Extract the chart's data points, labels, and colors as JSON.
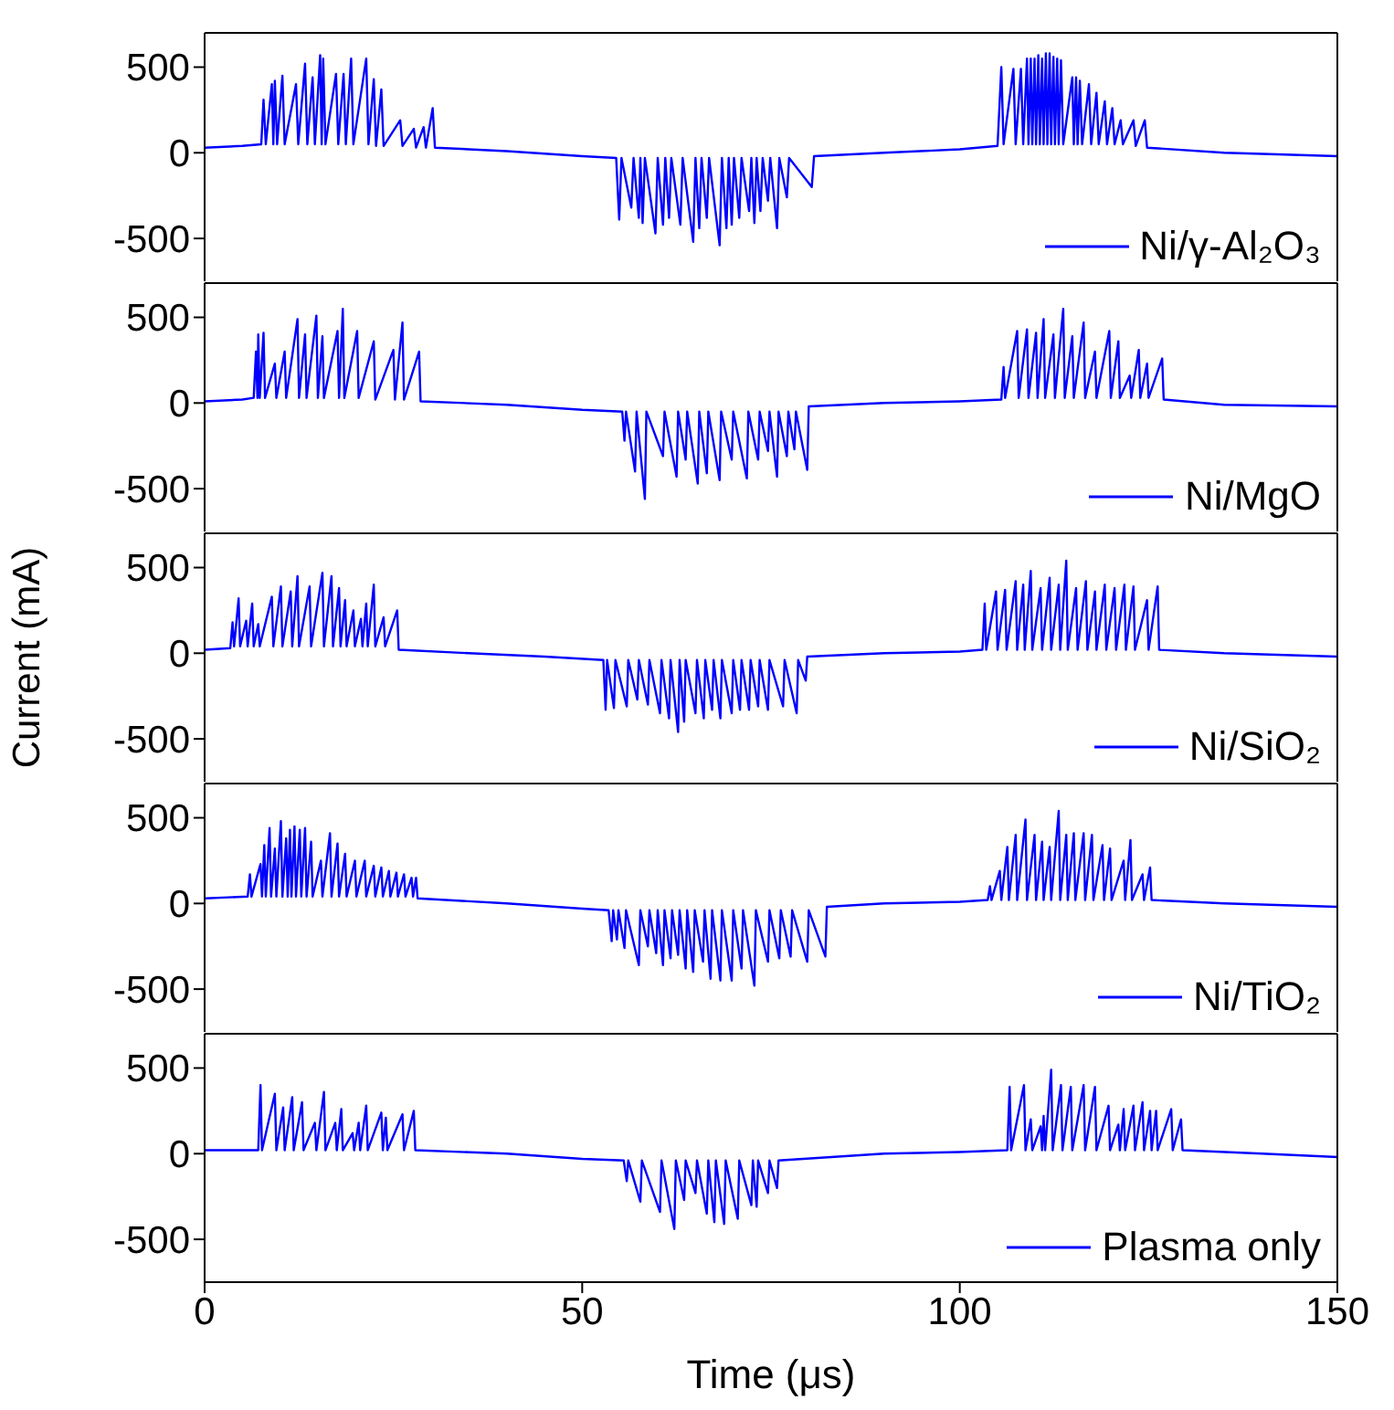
{
  "chart_data": [
    {
      "type": "line",
      "xlim": [
        0,
        150
      ],
      "ylim": [
        -750,
        700
      ],
      "yticks": [
        -500,
        0,
        500
      ],
      "tick_labels": "y",
      "legend": "bottom right",
      "line_style": "solid",
      "series": [
        {
          "name": "Ni/γ-Al₂O₃",
          "color": "#0000ff",
          "x": [
            0,
            5,
            7.5,
            7.8,
            8.1,
            8.9,
            9.1,
            9.3,
            9.6,
            10.3,
            10.6,
            12.1,
            12.4,
            13.3,
            13.6,
            14.3,
            14.6,
            15.3,
            15.5,
            15.7,
            16.0,
            17.4,
            17.7,
            18.4,
            18.7,
            19.4,
            19.7,
            21.4,
            21.7,
            22.4,
            22.7,
            23.4,
            23.7,
            25.9,
            26.2,
            27.7,
            28.0,
            29.0,
            29.3,
            30.2,
            30.5,
            40,
            50,
            54.5,
            54.9,
            55.2,
            56.5,
            56.8,
            57.5,
            57.7,
            58.0,
            58.3,
            59.7,
            60.0,
            60.7,
            61.0,
            61.5,
            61.8,
            63.0,
            63.3,
            64.7,
            65.0,
            65.5,
            65.8,
            66.5,
            66.8,
            68.2,
            68.5,
            69.1,
            69.4,
            69.8,
            70.1,
            70.8,
            71.1,
            72.1,
            72.4,
            72.8,
            73.1,
            73.6,
            73.9,
            74.6,
            74.9,
            75.8,
            76.1,
            77.1,
            77.4,
            80.4,
            80.7,
            90,
            100,
            105,
            105.5,
            105.8,
            107.1,
            107.4,
            108.1,
            108.4,
            108.9,
            109.1,
            109.4,
            109.6,
            109.9,
            110.1,
            110.4,
            110.6,
            110.9,
            111.1,
            111.4,
            111.6,
            111.9,
            112.1,
            112.4,
            112.6,
            112.9,
            113.1,
            113.4,
            113.7,
            114.9,
            115.1,
            115.4,
            115.6,
            115.9,
            116.2,
            117.1,
            117.4,
            118.1,
            118.4,
            119.2,
            119.5,
            120.2,
            120.5,
            121.3,
            121.6,
            123.0,
            123.3,
            124.5,
            124.8,
            135,
            150
          ],
          "values": [
            30,
            40,
            50,
            310,
            50,
            400,
            50,
            420,
            50,
            450,
            50,
            400,
            50,
            520,
            50,
            440,
            50,
            570,
            50,
            550,
            50,
            460,
            50,
            460,
            50,
            550,
            50,
            550,
            50,
            430,
            40,
            370,
            40,
            190,
            40,
            140,
            30,
            150,
            30,
            260,
            30,
            10,
            -20,
            -30,
            -390,
            -30,
            -320,
            -30,
            -380,
            -30,
            -410,
            -30,
            -470,
            -30,
            -420,
            -30,
            -380,
            -30,
            -420,
            -30,
            -520,
            -30,
            -440,
            -30,
            -380,
            -30,
            -540,
            -30,
            -440,
            -30,
            -420,
            -30,
            -380,
            -30,
            -340,
            -30,
            -410,
            -30,
            -340,
            -30,
            -280,
            -30,
            -440,
            -30,
            -260,
            -30,
            -200,
            -20,
            0,
            20,
            40,
            500,
            50,
            490,
            50,
            490,
            50,
            550,
            50,
            550,
            50,
            550,
            50,
            570,
            50,
            550,
            50,
            580,
            50,
            580,
            50,
            560,
            50,
            550,
            50,
            540,
            50,
            440,
            50,
            440,
            50,
            420,
            50,
            400,
            50,
            350,
            50,
            300,
            50,
            260,
            50,
            190,
            50,
            190,
            40,
            190,
            30,
            0,
            -20
          ]
        }
      ]
    },
    {
      "type": "line",
      "xlim": [
        0,
        150
      ],
      "ylim": [
        -750,
        700
      ],
      "yticks": [
        -500,
        0,
        500
      ],
      "tick_labels": "y",
      "legend": "bottom right",
      "line_style": "solid",
      "series": [
        {
          "name": "Ni/MgO",
          "color": "#0000ff",
          "x": [
            0,
            5,
            6.5,
            6.8,
            7.0,
            7.1,
            7.3,
            7.8,
            8.0,
            9.3,
            9.5,
            10.6,
            10.8,
            12.3,
            12.5,
            13.3,
            13.5,
            14.8,
            15.0,
            15.6,
            15.8,
            17.6,
            17.8,
            18.3,
            18.5,
            20.2,
            20.4,
            22.4,
            22.6,
            25.0,
            25.2,
            26.2,
            26.4,
            28.4,
            28.6,
            40,
            50,
            55.3,
            55.6,
            55.8,
            57.0,
            57.2,
            58.3,
            58.5,
            60.7,
            60.9,
            62.5,
            62.7,
            63.7,
            63.9,
            65.3,
            65.5,
            66.5,
            66.7,
            68.2,
            68.4,
            69.8,
            70.0,
            71.8,
            72.0,
            73.3,
            73.5,
            74.6,
            74.8,
            75.8,
            76.0,
            77.1,
            77.3,
            78.1,
            78.3,
            79.8,
            80.0,
            90,
            100,
            105.5,
            105.8,
            106.0,
            107.6,
            107.8,
            108.9,
            109.1,
            110.1,
            110.3,
            111.1,
            111.3,
            112.4,
            112.6,
            113.7,
            113.9,
            114.9,
            115.1,
            116.4,
            116.6,
            117.9,
            118.1,
            119.8,
            120.0,
            121.0,
            121.2,
            122.5,
            122.7,
            123.7,
            123.9,
            124.8,
            125.0,
            126.8,
            127.0,
            135,
            150
          ],
          "values": [
            10,
            20,
            30,
            300,
            30,
            400,
            30,
            410,
            30,
            230,
            30,
            300,
            30,
            490,
            30,
            400,
            30,
            510,
            30,
            390,
            30,
            420,
            30,
            550,
            30,
            420,
            30,
            360,
            20,
            310,
            20,
            470,
            20,
            300,
            10,
            -10,
            -40,
            -50,
            -220,
            -50,
            -400,
            -50,
            -560,
            -50,
            -310,
            -50,
            -430,
            -50,
            -330,
            -50,
            -470,
            -50,
            -410,
            -50,
            -450,
            -50,
            -330,
            -50,
            -440,
            -50,
            -330,
            -50,
            -280,
            -50,
            -430,
            -50,
            -310,
            -50,
            -270,
            -50,
            -390,
            -20,
            0,
            10,
            20,
            210,
            30,
            420,
            30,
            430,
            30,
            410,
            30,
            490,
            30,
            400,
            30,
            550,
            30,
            390,
            30,
            470,
            30,
            300,
            30,
            420,
            30,
            360,
            30,
            160,
            30,
            310,
            30,
            230,
            30,
            260,
            20,
            -10,
            -20
          ]
        }
      ]
    },
    {
      "type": "line",
      "xlim": [
        0,
        150
      ],
      "ylim": [
        -750,
        700
      ],
      "yticks": [
        -500,
        0,
        500
      ],
      "tick_labels": "y",
      "legend": "bottom right",
      "line_style": "solid",
      "ylabel": "Current (mA)",
      "series": [
        {
          "name": "Ni/SiO₂",
          "color": "#0000ff",
          "x": [
            0,
            3.4,
            3.7,
            3.9,
            4.5,
            4.7,
            5.5,
            5.7,
            6.3,
            6.5,
            7.1,
            7.3,
            8.9,
            9.1,
            10.1,
            10.3,
            11.4,
            11.6,
            12.3,
            12.5,
            13.9,
            14.1,
            15.6,
            15.8,
            16.8,
            17.0,
            17.8,
            18.0,
            18.6,
            18.8,
            19.7,
            19.9,
            20.7,
            20.9,
            21.4,
            21.6,
            22.4,
            22.6,
            23.7,
            23.9,
            25.5,
            25.7,
            35,
            45,
            52.8,
            53.1,
            53.3,
            54.2,
            54.4,
            55.9,
            56.1,
            57.3,
            57.5,
            58.7,
            58.9,
            60.3,
            60.5,
            61.5,
            61.7,
            62.7,
            62.9,
            63.5,
            63.7,
            65.0,
            65.2,
            66.1,
            66.3,
            67.2,
            67.4,
            68.3,
            68.5,
            69.8,
            70.0,
            70.9,
            71.1,
            72.1,
            72.3,
            73.3,
            73.5,
            74.6,
            74.8,
            76.6,
            76.8,
            78.4,
            78.6,
            79.6,
            79.8,
            90,
            100,
            103.0,
            103.3,
            103.5,
            104.8,
            105.0,
            106.0,
            106.2,
            107.4,
            107.6,
            108.4,
            108.6,
            109.4,
            109.6,
            110.7,
            110.9,
            111.9,
            112.1,
            113.1,
            113.3,
            114.1,
            114.3,
            115.4,
            115.6,
            116.7,
            116.9,
            117.9,
            118.1,
            119.2,
            119.4,
            120.5,
            120.7,
            121.8,
            122.0,
            123.0,
            123.2,
            124.8,
            125.0,
            126.2,
            126.4,
            135,
            150
          ],
          "values": [
            20,
            30,
            180,
            40,
            320,
            40,
            190,
            40,
            290,
            40,
            170,
            40,
            330,
            40,
            390,
            40,
            360,
            40,
            450,
            40,
            390,
            40,
            470,
            40,
            450,
            40,
            380,
            40,
            310,
            40,
            250,
            40,
            200,
            40,
            290,
            40,
            400,
            40,
            210,
            40,
            250,
            20,
            0,
            -20,
            -40,
            -330,
            -40,
            -320,
            -40,
            -310,
            -40,
            -270,
            -40,
            -300,
            -40,
            -350,
            -40,
            -380,
            -40,
            -460,
            -40,
            -400,
            -40,
            -350,
            -40,
            -380,
            -40,
            -330,
            -40,
            -380,
            -40,
            -350,
            -40,
            -330,
            -40,
            -330,
            -40,
            -310,
            -40,
            -330,
            -40,
            -310,
            -40,
            -350,
            -40,
            -160,
            -20,
            0,
            10,
            20,
            290,
            20,
            360,
            20,
            370,
            20,
            420,
            20,
            400,
            20,
            480,
            20,
            380,
            20,
            440,
            20,
            400,
            20,
            540,
            20,
            380,
            20,
            420,
            20,
            360,
            20,
            400,
            20,
            380,
            20,
            400,
            20,
            390,
            20,
            310,
            20,
            390,
            20,
            0,
            -20
          ]
        }
      ]
    },
    {
      "type": "line",
      "xlim": [
        0,
        150
      ],
      "ylim": [
        -750,
        700
      ],
      "yticks": [
        -500,
        0,
        500
      ],
      "tick_labels": "y",
      "legend": "bottom right",
      "line_style": "solid",
      "series": [
        {
          "name": "Ni/TiO₂",
          "color": "#0000ff",
          "x": [
            0,
            5.7,
            6.0,
            6.2,
            7.4,
            7.6,
            7.9,
            8.1,
            8.6,
            8.8,
            9.3,
            9.5,
            10.1,
            10.3,
            10.8,
            11.0,
            11.3,
            11.5,
            11.9,
            12.1,
            12.6,
            12.8,
            13.3,
            13.5,
            14.1,
            14.3,
            15.4,
            15.6,
            16.6,
            16.8,
            17.6,
            17.8,
            18.6,
            18.8,
            19.9,
            20.1,
            21.2,
            21.4,
            22.4,
            22.6,
            23.4,
            23.6,
            24.4,
            24.6,
            25.4,
            25.6,
            26.4,
            26.6,
            27.4,
            27.6,
            28.0,
            28.2,
            40,
            50,
            53.5,
            53.9,
            54.1,
            54.6,
            54.8,
            55.6,
            55.8,
            57.5,
            57.7,
            58.7,
            58.9,
            59.8,
            60.0,
            60.7,
            60.9,
            61.7,
            61.9,
            62.7,
            62.9,
            63.7,
            63.9,
            64.7,
            64.9,
            66.0,
            66.2,
            67.0,
            67.2,
            68.3,
            68.5,
            69.8,
            70.0,
            71.1,
            71.3,
            72.8,
            73.0,
            74.6,
            74.8,
            76.1,
            76.3,
            77.6,
            77.8,
            79.8,
            80.0,
            82.2,
            82.4,
            90,
            100,
            103.7,
            104.0,
            104.2,
            105.3,
            105.5,
            106.3,
            106.5,
            107.4,
            107.6,
            108.7,
            108.9,
            109.9,
            110.1,
            110.9,
            111.1,
            111.9,
            112.1,
            113.1,
            113.3,
            114.1,
            114.3,
            115.1,
            115.3,
            116.4,
            116.6,
            117.5,
            117.7,
            118.9,
            119.1,
            119.9,
            120.1,
            121.7,
            121.9,
            122.6,
            122.8,
            124.2,
            124.4,
            125.2,
            125.4,
            135,
            150
          ],
          "values": [
            30,
            40,
            170,
            40,
            230,
            40,
            340,
            40,
            440,
            40,
            320,
            40,
            480,
            40,
            380,
            40,
            430,
            40,
            450,
            40,
            430,
            40,
            440,
            40,
            360,
            40,
            250,
            40,
            410,
            40,
            350,
            40,
            290,
            40,
            250,
            40,
            250,
            40,
            220,
            40,
            210,
            40,
            190,
            40,
            180,
            40,
            170,
            40,
            150,
            40,
            150,
            30,
            0,
            -30,
            -40,
            -220,
            -40,
            -210,
            -40,
            -260,
            -40,
            -360,
            -40,
            -250,
            -40,
            -290,
            -40,
            -360,
            -40,
            -320,
            -40,
            -300,
            -40,
            -380,
            -40,
            -400,
            -40,
            -340,
            -40,
            -440,
            -40,
            -450,
            -40,
            -450,
            -40,
            -380,
            -40,
            -480,
            -40,
            -340,
            -40,
            -320,
            -40,
            -310,
            -40,
            -340,
            -40,
            -310,
            -20,
            0,
            10,
            20,
            100,
            20,
            190,
            20,
            330,
            20,
            400,
            20,
            490,
            20,
            400,
            20,
            360,
            20,
            330,
            20,
            540,
            20,
            400,
            20,
            410,
            20,
            410,
            20,
            400,
            20,
            340,
            20,
            320,
            20,
            250,
            20,
            370,
            20,
            170,
            20,
            210,
            20,
            0,
            -20
          ]
        }
      ]
    },
    {
      "type": "line",
      "xlim": [
        0,
        150
      ],
      "ylim": [
        -750,
        700
      ],
      "xticks": [
        0,
        50,
        100,
        150
      ],
      "yticks": [
        -500,
        0,
        500
      ],
      "xlabel": "Time (μs)",
      "legend": "bottom right",
      "line_style": "solid",
      "series": [
        {
          "name": "Plasma only",
          "color": "#0000ff",
          "x": [
            0,
            7.1,
            7.4,
            7.6,
            9.3,
            9.5,
            10.4,
            10.6,
            11.6,
            11.8,
            12.9,
            13.1,
            14.6,
            14.8,
            15.8,
            16.0,
            17.3,
            17.5,
            18.1,
            18.3,
            19.6,
            19.8,
            20.4,
            20.6,
            21.4,
            21.6,
            23.4,
            23.6,
            24.0,
            24.2,
            26.2,
            26.4,
            27.7,
            27.9,
            40,
            50,
            55.5,
            55.9,
            56.1,
            57.7,
            57.9,
            60.3,
            60.5,
            62.2,
            62.4,
            63.5,
            63.7,
            65.0,
            65.2,
            66.5,
            66.7,
            67.5,
            67.7,
            68.8,
            69.0,
            70.6,
            70.8,
            72.4,
            72.6,
            73.1,
            73.3,
            74.6,
            74.8,
            75.8,
            76.0,
            90,
            100,
            106.3,
            106.6,
            106.8,
            108.5,
            108.7,
            109.4,
            109.6,
            110.7,
            110.9,
            111.1,
            111.3,
            112.1,
            112.3,
            113.4,
            113.6,
            114.7,
            114.9,
            116.4,
            116.6,
            117.9,
            118.1,
            119.7,
            119.9,
            121.0,
            121.2,
            121.7,
            121.9,
            123.0,
            123.2,
            124.2,
            124.4,
            125.2,
            125.4,
            126.0,
            126.2,
            128.0,
            128.2,
            129.3,
            129.5,
            140,
            150
          ],
          "values": [
            20,
            20,
            400,
            20,
            350,
            20,
            270,
            20,
            330,
            20,
            300,
            20,
            180,
            20,
            360,
            20,
            180,
            20,
            260,
            20,
            120,
            20,
            180,
            20,
            280,
            20,
            240,
            20,
            210,
            20,
            230,
            20,
            250,
            20,
            0,
            -30,
            -40,
            -160,
            -40,
            -280,
            -40,
            -340,
            -40,
            -440,
            -40,
            -270,
            -40,
            -230,
            -40,
            -350,
            -40,
            -400,
            -40,
            -410,
            -40,
            -380,
            -40,
            -300,
            -40,
            -310,
            -40,
            -230,
            -40,
            -200,
            -40,
            0,
            10,
            20,
            390,
            20,
            400,
            20,
            200,
            20,
            160,
            20,
            220,
            20,
            490,
            20,
            400,
            20,
            390,
            20,
            400,
            20,
            390,
            20,
            280,
            20,
            170,
            20,
            260,
            20,
            280,
            20,
            300,
            20,
            250,
            20,
            250,
            20,
            260,
            20,
            200,
            20,
            0,
            -20
          ]
        }
      ]
    }
  ]
}
